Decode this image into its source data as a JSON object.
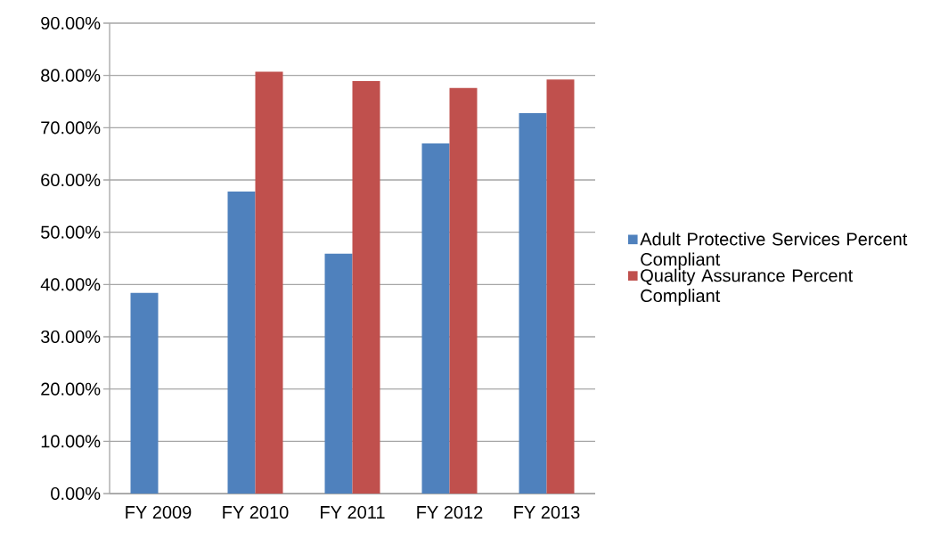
{
  "chart_data": {
    "type": "bar",
    "categories": [
      "FY 2009",
      "FY 2010",
      "FY 2011",
      "FY 2012",
      "FY 2013"
    ],
    "series": [
      {
        "name": "Adult Protective Services Percent Compliant",
        "color": "#4f81bd",
        "values": [
          38.4,
          57.8,
          45.9,
          67.0,
          72.8
        ]
      },
      {
        "name": "Quality Assurance Percent Compliant",
        "color": "#c0504d",
        "values": [
          null,
          80.7,
          78.9,
          77.6,
          79.2
        ]
      }
    ],
    "ylim": [
      0,
      90
    ],
    "yticks": [
      {
        "value": 0,
        "label": "0.00%"
      },
      {
        "value": 10,
        "label": "10.00%"
      },
      {
        "value": 20,
        "label": "20.00%"
      },
      {
        "value": 30,
        "label": "30.00%"
      },
      {
        "value": 40,
        "label": "40.00%"
      },
      {
        "value": 50,
        "label": "50.00%"
      },
      {
        "value": 60,
        "label": "60.00%"
      },
      {
        "value": 70,
        "label": "70.00%"
      },
      {
        "value": 80,
        "label": "80.00%"
      },
      {
        "value": 90,
        "label": "90.00%"
      }
    ],
    "grid": "y",
    "legend": "right"
  }
}
